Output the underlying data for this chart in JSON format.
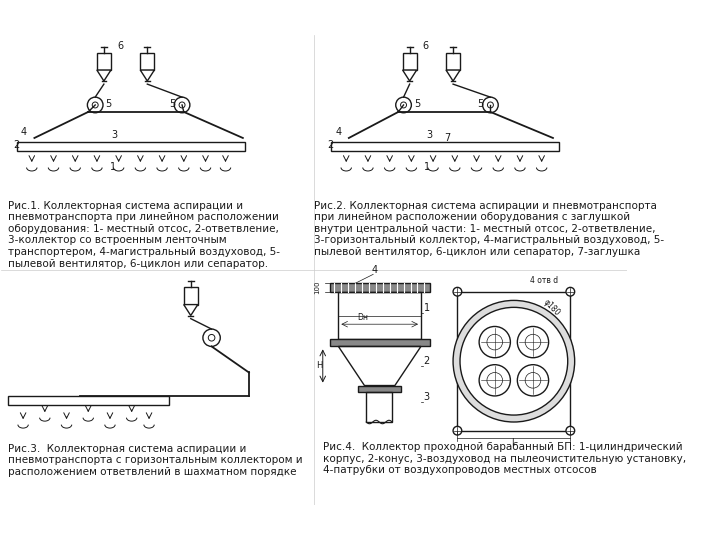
{
  "bg_color": "#ffffff",
  "fig_width": 7.2,
  "fig_height": 5.4,
  "dpi": 100,
  "caption1": "Рис.1. Коллекторная система аспирации и\nпневмотранспорта при линейном расположении\nоборудования: 1- местный отсос, 2-ответвление,\n3-коллектор со встроенным ленточным\nтранспортером, 4-магистральный воздуховод, 5-\nпылевой вентилятор, 6-циклон или сепаратор.",
  "caption2": "Рис.2. Коллекторная система аспирации и пневмотранспорта\nпри линейном расположении оборудования с заглушкой\nвнутри центральной части: 1- местный отсос, 2-ответвление,\n3-горизонтальный коллектор, 4-магистральный воздуховод, 5-\nпылевой вентилятор, 6-циклон или сепаратор, 7-заглушка",
  "caption3": "Рис.3.  Коллекторная система аспирации и\nпневмотранспорта с горизонтальным коллектором и\nрасположением ответвлений в шахматном порядке",
  "caption4": "Рис.4.  Коллектор проходной барабанный БП: 1-цилиндрический\nкорпус, 2-конус, 3-воздуховод на пылеочистительную установку,\n4-патрубки от воздухопроводов местных отсосов",
  "line_color": "#1a1a1a",
  "text_color": "#1a1a1a",
  "font_size": 7.5
}
